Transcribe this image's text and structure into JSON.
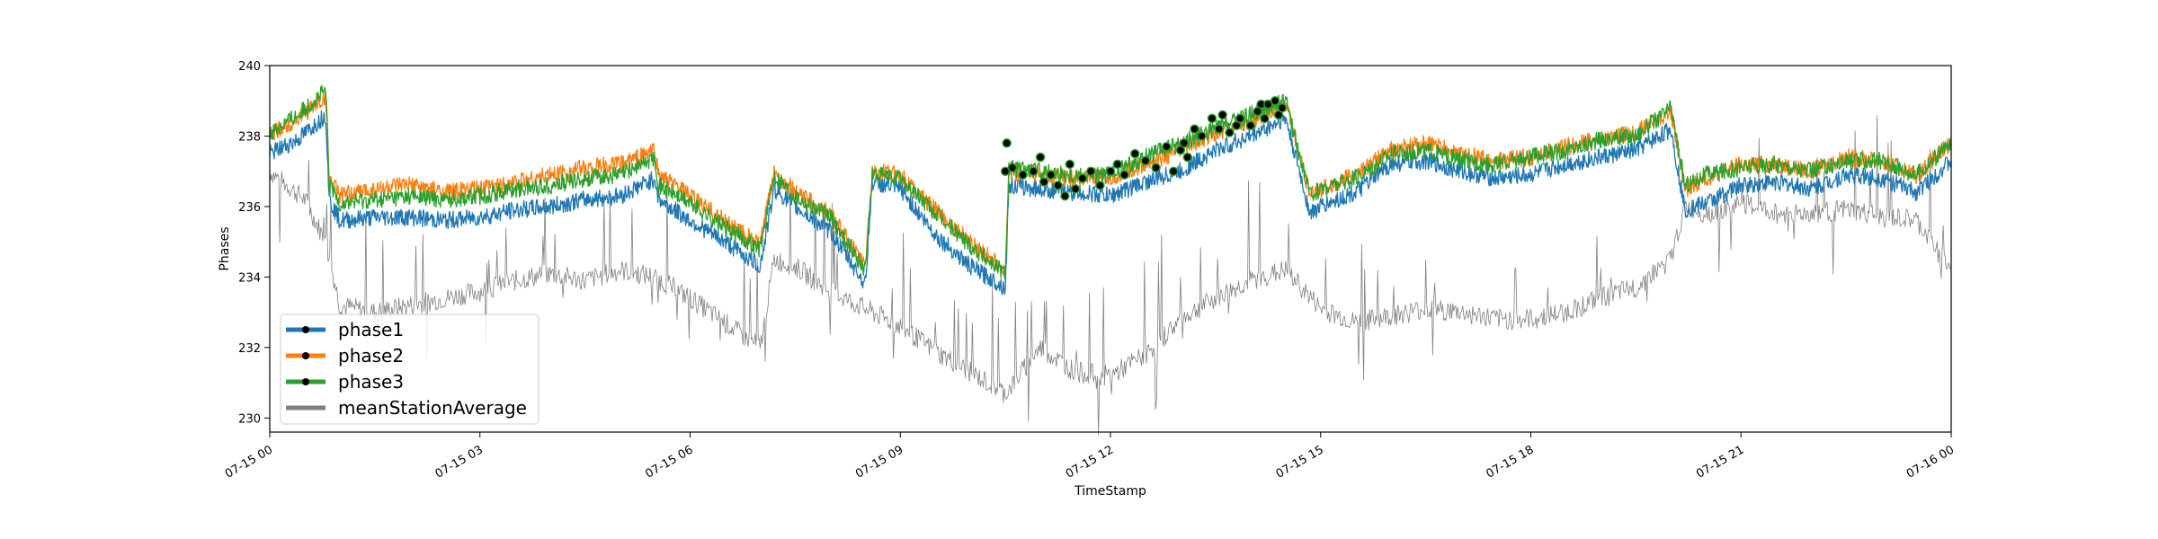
{
  "chart_data": {
    "type": "line",
    "xlabel": "TimeStamp",
    "ylabel": "Phases",
    "x_range_hours": [
      0,
      24
    ],
    "x_ticks": [
      {
        "hour": 0,
        "label": "07-15 00"
      },
      {
        "hour": 3,
        "label": "07-15 03"
      },
      {
        "hour": 6,
        "label": "07-15 06"
      },
      {
        "hour": 9,
        "label": "07-15 09"
      },
      {
        "hour": 12,
        "label": "07-15 12"
      },
      {
        "hour": 15,
        "label": "07-15 15"
      },
      {
        "hour": 18,
        "label": "07-15 18"
      },
      {
        "hour": 21,
        "label": "07-15 21"
      },
      {
        "hour": 24,
        "label": "07-16 00"
      }
    ],
    "ylim": [
      229.6,
      240
    ],
    "y_ticks": [
      230,
      232,
      234,
      236,
      238,
      240
    ],
    "legend_position": "lower-left",
    "grid": false,
    "colors": {
      "phase1": "#1f77b4",
      "phase2": "#ff7f0e",
      "phase3": "#2ca02c",
      "meanStationAverage": "#808080",
      "marker": "#000000"
    },
    "series": [
      {
        "name": "phase1",
        "x": [
          0,
          0.4,
          0.8,
          0.85,
          1.0,
          1.5,
          2.0,
          2.5,
          3.0,
          3.5,
          4.0,
          4.5,
          5.0,
          5.5,
          5.55,
          6.0,
          6.5,
          7.0,
          7.2,
          7.5,
          8.0,
          8.5,
          8.6,
          9.0,
          9.5,
          10.0,
          10.5,
          10.55,
          11.0,
          11.5,
          12.0,
          12.5,
          13.0,
          13.5,
          14.0,
          14.5,
          14.85,
          15.0,
          15.5,
          16.0,
          16.5,
          17.0,
          17.5,
          18.0,
          18.5,
          19.0,
          19.5,
          20.0,
          20.2,
          20.5,
          21.0,
          21.5,
          22.0,
          22.5,
          23.0,
          23.5,
          24.0
        ],
        "values": [
          237.5,
          237.9,
          238.6,
          236.2,
          235.6,
          235.7,
          235.7,
          235.6,
          235.7,
          235.9,
          236.0,
          236.2,
          236.3,
          236.8,
          236.2,
          235.6,
          235.0,
          234.3,
          236.5,
          236.0,
          235.3,
          233.8,
          236.7,
          236.5,
          235.2,
          234.3,
          233.7,
          236.6,
          236.5,
          236.4,
          236.3,
          236.7,
          237.0,
          237.6,
          238.0,
          238.5,
          235.8,
          236.0,
          236.4,
          237.2,
          237.3,
          237.0,
          236.8,
          236.9,
          237.2,
          237.4,
          237.6,
          238.2,
          235.9,
          236.1,
          236.6,
          236.7,
          236.5,
          236.9,
          236.8,
          236.4,
          237.3
        ]
      },
      {
        "name": "phase2",
        "x": [
          0,
          0.4,
          0.8,
          0.85,
          1.0,
          1.5,
          2.0,
          2.5,
          3.0,
          3.5,
          4.0,
          4.5,
          5.0,
          5.5,
          5.55,
          6.0,
          6.5,
          7.0,
          7.2,
          7.5,
          8.0,
          8.5,
          8.6,
          9.0,
          9.5,
          10.0,
          10.5,
          10.55,
          11.0,
          11.5,
          12.0,
          12.5,
          13.0,
          13.5,
          14.0,
          14.5,
          14.85,
          15.0,
          15.5,
          16.0,
          16.5,
          17.0,
          17.5,
          18.0,
          18.5,
          19.0,
          19.5,
          20.0,
          20.2,
          20.5,
          21.0,
          21.5,
          22.0,
          22.5,
          23.0,
          23.5,
          24.0
        ],
        "values": [
          238.0,
          238.5,
          239.1,
          236.8,
          236.3,
          236.5,
          236.6,
          236.4,
          236.5,
          236.7,
          236.9,
          237.1,
          237.2,
          237.6,
          236.9,
          236.3,
          235.6,
          234.9,
          237.0,
          236.4,
          235.8,
          234.3,
          237.0,
          236.9,
          235.9,
          235.0,
          234.2,
          237.0,
          236.9,
          236.8,
          236.8,
          237.2,
          237.6,
          238.1,
          238.4,
          238.9,
          236.3,
          236.5,
          236.9,
          237.6,
          237.8,
          237.5,
          237.3,
          237.4,
          237.7,
          237.9,
          238.1,
          238.7,
          236.5,
          236.8,
          237.2,
          237.2,
          237.0,
          237.4,
          237.3,
          236.9,
          237.8
        ]
      },
      {
        "name": "phase3",
        "x": [
          0,
          0.4,
          0.8,
          0.85,
          1.0,
          1.5,
          2.0,
          2.5,
          3.0,
          3.5,
          4.0,
          4.5,
          5.0,
          5.5,
          5.55,
          6.0,
          6.5,
          7.0,
          7.2,
          7.5,
          8.0,
          8.5,
          8.6,
          9.0,
          9.5,
          10.0,
          10.5,
          10.55,
          11.0,
          11.5,
          12.0,
          12.5,
          13.0,
          13.5,
          14.0,
          14.5,
          14.85,
          15.0,
          15.5,
          16.0,
          16.5,
          17.0,
          17.5,
          18.0,
          18.5,
          19.0,
          19.5,
          20.0,
          20.2,
          20.5,
          21.0,
          21.5,
          22.0,
          22.5,
          23.0,
          23.5,
          24.0
        ],
        "values": [
          238.1,
          238.6,
          239.3,
          236.6,
          236.1,
          236.2,
          236.3,
          236.2,
          236.3,
          236.5,
          236.6,
          236.8,
          236.9,
          237.4,
          236.6,
          236.1,
          235.4,
          234.8,
          236.9,
          236.3,
          235.7,
          234.2,
          236.9,
          236.8,
          235.8,
          234.9,
          234.1,
          237.1,
          237.0,
          236.9,
          236.9,
          237.4,
          237.8,
          238.2,
          238.6,
          239.0,
          236.3,
          236.5,
          236.8,
          237.5,
          237.6,
          237.3,
          237.2,
          237.4,
          237.6,
          237.9,
          238.0,
          238.8,
          236.6,
          236.9,
          237.1,
          237.2,
          237.0,
          237.3,
          237.3,
          236.9,
          237.8
        ]
      },
      {
        "name": "meanStationAverage",
        "x": [
          0,
          0.5,
          0.8,
          1.0,
          1.5,
          2.0,
          2.5,
          3.0,
          3.5,
          4.0,
          4.5,
          5.0,
          5.5,
          6.0,
          6.5,
          7.0,
          7.2,
          7.5,
          8.0,
          8.5,
          9.0,
          9.5,
          10.0,
          10.5,
          11.0,
          11.5,
          12.0,
          12.5,
          13.0,
          13.5,
          14.0,
          14.5,
          15.0,
          15.5,
          16.0,
          16.5,
          17.0,
          17.5,
          18.0,
          18.5,
          19.0,
          19.5,
          20.0,
          20.2,
          20.5,
          21.0,
          21.5,
          22.0,
          22.5,
          23.0,
          23.5,
          24.0
        ],
        "values": [
          237.0,
          236.2,
          235.0,
          233.2,
          233.0,
          233.2,
          233.4,
          233.6,
          233.9,
          234.1,
          233.9,
          234.2,
          234.0,
          233.4,
          232.7,
          232.0,
          234.5,
          234.3,
          233.6,
          233.1,
          232.6,
          231.9,
          231.3,
          230.7,
          232.0,
          231.3,
          231.2,
          231.8,
          232.8,
          233.4,
          233.9,
          234.2,
          233.1,
          232.7,
          232.9,
          233.1,
          233.0,
          232.8,
          232.8,
          233.0,
          233.4,
          233.7,
          234.5,
          236.0,
          235.8,
          236.1,
          235.8,
          235.8,
          235.9,
          235.7,
          235.6,
          234.2
        ]
      }
    ],
    "flagged_points": {
      "series": "phase3",
      "x": [
        10.5,
        10.52,
        10.6,
        10.75,
        10.9,
        11.0,
        11.05,
        11.15,
        11.25,
        11.35,
        11.42,
        11.5,
        11.6,
        11.72,
        11.85,
        12.0,
        12.1,
        12.2,
        12.35,
        12.5,
        12.65,
        12.8,
        12.9,
        13.0,
        13.05,
        13.1,
        13.2,
        13.3,
        13.45,
        13.55,
        13.6,
        13.7,
        13.8,
        13.85,
        14.0,
        14.1,
        14.15,
        14.2,
        14.25,
        14.35,
        14.4,
        14.45
      ],
      "values": [
        237.0,
        237.8,
        237.1,
        236.9,
        237.0,
        237.4,
        236.7,
        236.9,
        236.6,
        236.3,
        237.2,
        236.5,
        236.8,
        237.0,
        236.6,
        237.0,
        237.2,
        236.9,
        237.5,
        237.3,
        237.1,
        237.7,
        237.0,
        237.6,
        237.8,
        237.4,
        238.2,
        238.0,
        238.5,
        238.2,
        238.6,
        238.1,
        238.3,
        238.5,
        238.3,
        238.7,
        238.9,
        238.5,
        238.9,
        239.0,
        238.6,
        238.8
      ]
    }
  }
}
